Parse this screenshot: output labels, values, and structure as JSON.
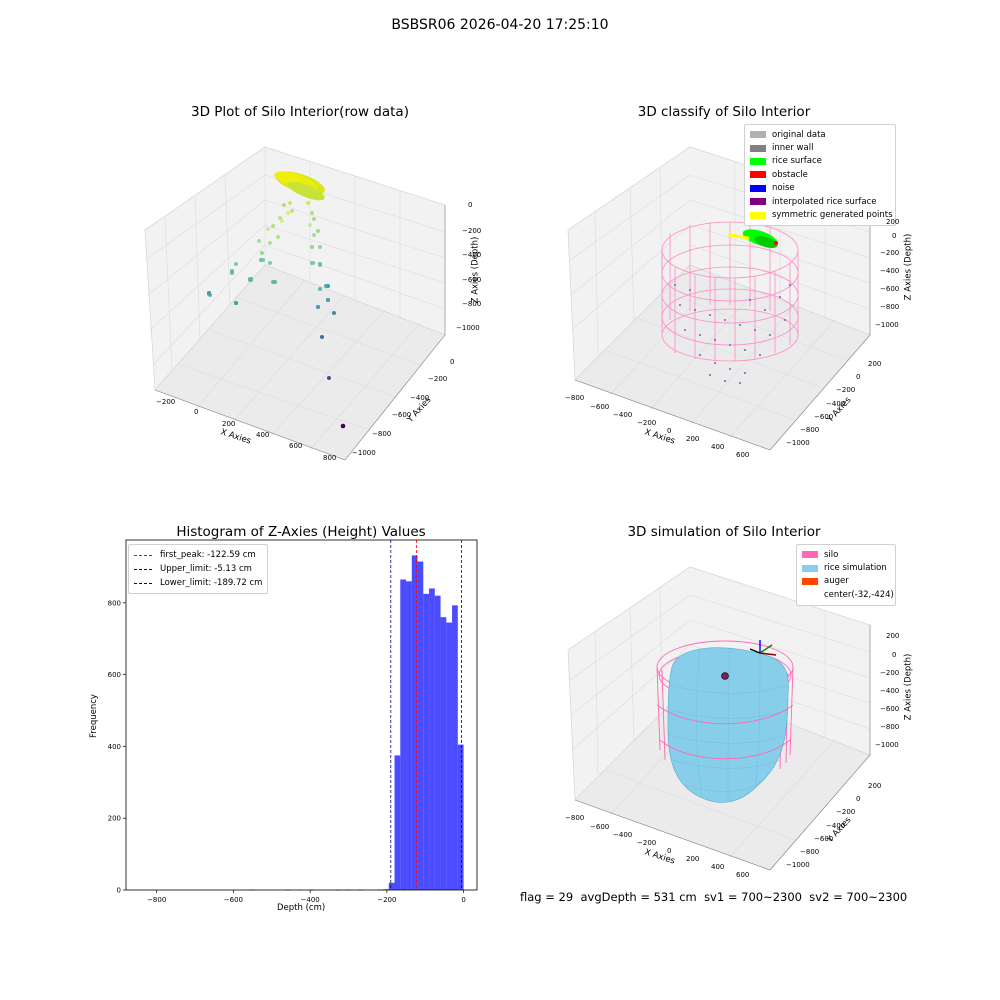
{
  "suptitle": "BSBSR06 2026-04-20 17:25:10",
  "panels": {
    "raw": {
      "title": "3D Plot of Silo Interior(row data)",
      "xlabel": "X Axies",
      "ylabel": "Y Axies",
      "zlabel": "Z Axies (Depth)",
      "x_ticks": [
        "−200",
        "0",
        "200",
        "400",
        "600",
        "800"
      ],
      "y_ticks": [
        "0",
        "−200",
        "−400",
        "−600",
        "−800",
        "−1000"
      ],
      "z_ticks": [
        "0",
        "−200",
        "−400",
        "−600",
        "−800",
        "−1000"
      ]
    },
    "classify": {
      "title": "3D classify of Silo Interior",
      "xlabel": "X Axies",
      "ylabel": "Y Axies",
      "zlabel": "Z Axies (Depth)",
      "x_ticks": [
        "−800",
        "−600",
        "−400",
        "−200",
        "0",
        "200",
        "400",
        "600"
      ],
      "y_ticks": [
        "200",
        "0",
        "−200",
        "−400",
        "−600",
        "−800",
        "−1000"
      ],
      "z_ticks": [
        "200",
        "0",
        "−200",
        "−400",
        "−600",
        "−800",
        "−1000"
      ],
      "legend": [
        {
          "label": "original data",
          "color": "#b0b0b0"
        },
        {
          "label": "inner wall",
          "color": "#808080"
        },
        {
          "label": "rice surface",
          "color": "#00ff00"
        },
        {
          "label": "obstacle",
          "color": "#ff0000"
        },
        {
          "label": "noise",
          "color": "#0000ff"
        },
        {
          "label": "interpolated rice surface",
          "color": "#800080"
        },
        {
          "label": "symmetric generated points",
          "color": "#ffff00"
        }
      ]
    },
    "simulation": {
      "title": "3D simulation of Silo Interior",
      "xlabel": "X Axies",
      "ylabel": "Y Axies",
      "zlabel": "Z Axies (Depth)",
      "x_ticks": [
        "−800",
        "−600",
        "−400",
        "−200",
        "0",
        "200",
        "400",
        "600"
      ],
      "y_ticks": [
        "200",
        "0",
        "−200",
        "−400",
        "−600",
        "−800",
        "−1000"
      ],
      "z_ticks": [
        "200",
        "0",
        "−200",
        "−400",
        "−600",
        "−800",
        "−1000"
      ],
      "legend": [
        {
          "label": "silo",
          "color": "#ff69b4"
        },
        {
          "label": "rice simulation",
          "color": "#87ceeb"
        },
        {
          "label": "auger",
          "color": "#ff4500"
        },
        {
          "label": "center(-32,-424)",
          "color": ""
        }
      ]
    }
  },
  "chart_data": {
    "type": "bar",
    "title": "Histogram of Z-Axies (Height) Values",
    "xlabel": "Depth (cm)",
    "ylabel": "Frequency",
    "xlim": [
      -880,
      35
    ],
    "ylim": [
      0,
      975
    ],
    "x_ticks": [
      -800,
      -600,
      -400,
      -200,
      0
    ],
    "y_ticks": [
      0,
      200,
      400,
      600,
      800
    ],
    "bar_color": "#0000ff",
    "bar_alpha": 0.7,
    "bins": [
      {
        "x0": -560,
        "x1": -545,
        "count": 1
      },
      {
        "x0": -465,
        "x1": -450,
        "count": 1
      },
      {
        "x0": -430,
        "x1": -420,
        "count": 1
      },
      {
        "x0": -400,
        "x1": -390,
        "count": 1
      },
      {
        "x0": -335,
        "x1": -320,
        "count": 1
      },
      {
        "x0": -310,
        "x1": -295,
        "count": 1
      },
      {
        "x0": -275,
        "x1": -260,
        "count": 1
      },
      {
        "x0": -225,
        "x1": -210,
        "count": 1
      },
      {
        "x0": -210,
        "x1": -195,
        "count": 2
      },
      {
        "x0": -195,
        "x1": -180,
        "count": 20
      },
      {
        "x0": -180,
        "x1": -165,
        "count": 375
      },
      {
        "x0": -165,
        "x1": -150,
        "count": 865
      },
      {
        "x0": -150,
        "x1": -135,
        "count": 860
      },
      {
        "x0": -135,
        "x1": -120,
        "count": 932
      },
      {
        "x0": -120,
        "x1": -105,
        "count": 915
      },
      {
        "x0": -105,
        "x1": -90,
        "count": 825
      },
      {
        "x0": -90,
        "x1": -75,
        "count": 840
      },
      {
        "x0": -75,
        "x1": -60,
        "count": 820
      },
      {
        "x0": -60,
        "x1": -45,
        "count": 760
      },
      {
        "x0": -45,
        "x1": -30,
        "count": 745
      },
      {
        "x0": -30,
        "x1": -15,
        "count": 793
      },
      {
        "x0": -15,
        "x1": 0,
        "count": 405
      }
    ],
    "vlines": [
      {
        "label": "first_peak: -122.59 cm",
        "x": -122.59,
        "color": "#ff0000"
      },
      {
        "label": "Upper_limit: -5.13 cm",
        "x": -5.13,
        "color": "#00008b"
      },
      {
        "label": "Lower_limit: -189.72 cm",
        "x": -189.72,
        "color": "#00008b"
      }
    ],
    "legend_position": "upper-left"
  },
  "footer": {
    "flag": "flag = 29",
    "avg_depth": "avgDepth = 531 cm",
    "sv1": "sv1 = 700~2300",
    "sv2": "sv2 = 700~2300"
  }
}
